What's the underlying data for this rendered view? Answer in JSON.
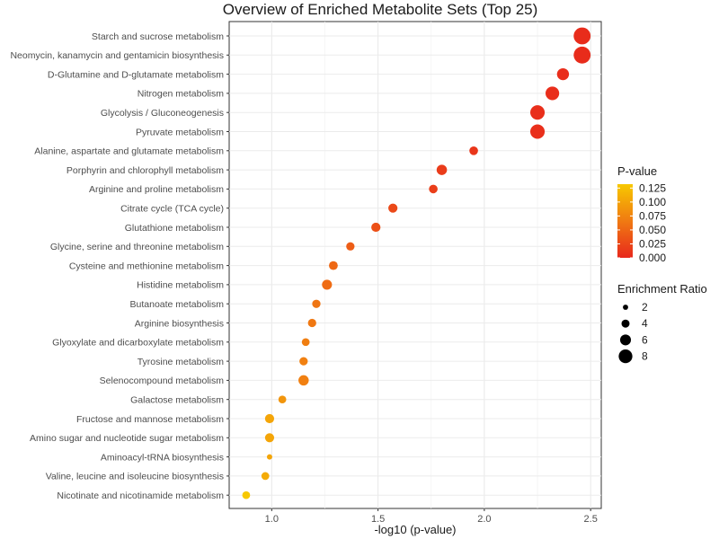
{
  "chart_data": {
    "type": "scatter",
    "title": "Overview of Enriched Metabolite Sets (Top 25)",
    "xlabel": "-log10 (p-value)",
    "ylabel": "",
    "xlim": [
      0.8,
      2.55
    ],
    "xticks": [
      "1.0",
      "1.5",
      "2.0",
      "2.5"
    ],
    "xtick_values": [
      1.0,
      1.5,
      2.0,
      2.5
    ],
    "grid": true,
    "legend_position": "right",
    "color_legend": {
      "title": "P-value",
      "ticks": [
        "0.125",
        "0.100",
        "0.075",
        "0.050",
        "0.025",
        "0.000"
      ],
      "tick_values": [
        0.125,
        0.1,
        0.075,
        0.05,
        0.025,
        0.0
      ],
      "range": [
        0.0,
        0.132
      ],
      "low_color": "#e8281c",
      "high_color": "#f7c800"
    },
    "size_legend": {
      "title": "Enrichment Ratio",
      "items": [
        "2",
        "4",
        "6",
        "8"
      ],
      "item_values": [
        2,
        4,
        6,
        8
      ]
    },
    "points": [
      {
        "label": "Starch and sucrose metabolism",
        "x": 2.46,
        "p": 0.0035,
        "ratio": 8.5
      },
      {
        "label": "Neomycin, kanamycin and gentamicin biosynthesis",
        "x": 2.46,
        "p": 0.0035,
        "ratio": 8.5
      },
      {
        "label": "D-Glutamine and D-glutamate metabolism",
        "x": 2.37,
        "p": 0.0043,
        "ratio": 5.5
      },
      {
        "label": "Nitrogen metabolism",
        "x": 2.32,
        "p": 0.0048,
        "ratio": 6.5
      },
      {
        "label": "Glycolysis / Gluconeogenesis",
        "x": 2.25,
        "p": 0.0056,
        "ratio": 7.0
      },
      {
        "label": "Pyruvate metabolism",
        "x": 2.25,
        "p": 0.0056,
        "ratio": 7.0
      },
      {
        "label": "Alanine, aspartate and glutamate metabolism",
        "x": 1.95,
        "p": 0.0112,
        "ratio": 3.5
      },
      {
        "label": "Porphyrin and chlorophyll metabolism",
        "x": 1.8,
        "p": 0.0158,
        "ratio": 4.5
      },
      {
        "label": "Arginine and proline metabolism",
        "x": 1.76,
        "p": 0.0174,
        "ratio": 3.5
      },
      {
        "label": "Citrate cycle (TCA cycle)",
        "x": 1.57,
        "p": 0.0269,
        "ratio": 3.8
      },
      {
        "label": "Glutathione metabolism",
        "x": 1.49,
        "p": 0.0324,
        "ratio": 3.8
      },
      {
        "label": "Glycine, serine and threonine metabolism",
        "x": 1.37,
        "p": 0.0427,
        "ratio": 3.3
      },
      {
        "label": "Cysteine and methionine metabolism",
        "x": 1.29,
        "p": 0.0513,
        "ratio": 3.6
      },
      {
        "label": "Histidine metabolism",
        "x": 1.26,
        "p": 0.055,
        "ratio": 4.3
      },
      {
        "label": "Butanoate metabolism",
        "x": 1.21,
        "p": 0.0617,
        "ratio": 3.3
      },
      {
        "label": "Arginine biosynthesis",
        "x": 1.19,
        "p": 0.0646,
        "ratio": 3.3
      },
      {
        "label": "Glyoxylate and dicarboxylate metabolism",
        "x": 1.16,
        "p": 0.0692,
        "ratio": 3.0
      },
      {
        "label": "Tyrosine metabolism",
        "x": 1.15,
        "p": 0.0708,
        "ratio": 3.3
      },
      {
        "label": "Selenocompound metabolism",
        "x": 1.15,
        "p": 0.0708,
        "ratio": 4.5
      },
      {
        "label": "Galactose metabolism",
        "x": 1.05,
        "p": 0.0891,
        "ratio": 3.0
      },
      {
        "label": "Fructose and mannose metabolism",
        "x": 0.99,
        "p": 0.1023,
        "ratio": 3.8
      },
      {
        "label": "Amino sugar and nucleotide sugar metabolism",
        "x": 0.99,
        "p": 0.1023,
        "ratio": 3.8
      },
      {
        "label": "Aminoacyl-tRNA biosynthesis",
        "x": 0.99,
        "p": 0.1023,
        "ratio": 1.5
      },
      {
        "label": "Valine, leucine and isoleucine biosynthesis",
        "x": 0.97,
        "p": 0.1072,
        "ratio": 3.0
      },
      {
        "label": "Nicotinate and nicotinamide metabolism",
        "x": 0.88,
        "p": 0.1318,
        "ratio": 3.0
      }
    ]
  }
}
